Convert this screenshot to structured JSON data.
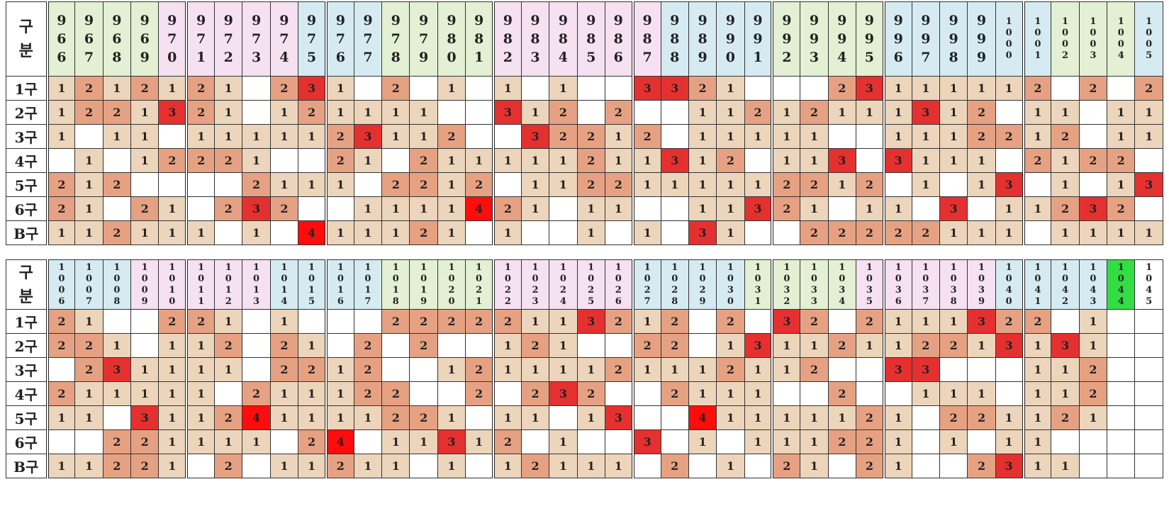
{
  "corner_label": "구\n분",
  "row_labels": [
    "1구",
    "2구",
    "3구",
    "4구",
    "5구",
    "6구",
    "B구"
  ],
  "colors": {
    "count_1": "#ecd5bb",
    "count_2": "#e6a183",
    "count_3": "#e53030",
    "count_4": "#ff0d0d",
    "header_green": "#e3f0d3",
    "header_pink": "#f5e1f1",
    "header_blue": "#d5ebf1",
    "header_highlight": "#33dd44"
  },
  "tables": [
    {
      "columns": [
        "966",
        "967",
        "968",
        "969",
        "970",
        "971",
        "972",
        "973",
        "974",
        "975",
        "976",
        "977",
        "978",
        "979",
        "980",
        "981",
        "982",
        "983",
        "984",
        "985",
        "986",
        "987",
        "988",
        "989",
        "990",
        "991",
        "992",
        "993",
        "994",
        "995",
        "996",
        "997",
        "998",
        "999",
        "1000",
        "1001",
        "1002",
        "1003",
        "1004",
        "1005"
      ],
      "header_colors": [
        "g",
        "g",
        "g",
        "g",
        "p",
        "p",
        "p",
        "p",
        "p",
        "b",
        "b",
        "b",
        "g",
        "g",
        "g",
        "g",
        "p",
        "p",
        "p",
        "p",
        "p",
        "p",
        "b",
        "b",
        "b",
        "b",
        "g",
        "g",
        "g",
        "g",
        "b",
        "b",
        "b",
        "b",
        "b",
        "b",
        "g",
        "g",
        "g",
        "b"
      ],
      "rows": [
        [
          1,
          2,
          1,
          2,
          1,
          2,
          1,
          0,
          2,
          3,
          1,
          0,
          2,
          0,
          1,
          0,
          1,
          0,
          1,
          0,
          0,
          3,
          3,
          2,
          1,
          0,
          0,
          0,
          2,
          3,
          1,
          1,
          1,
          1,
          1,
          2,
          0,
          2,
          0,
          2
        ],
        [
          1,
          2,
          2,
          1,
          3,
          2,
          1,
          0,
          1,
          2,
          1,
          1,
          1,
          1,
          0,
          0,
          3,
          1,
          2,
          0,
          2,
          0,
          0,
          1,
          1,
          2,
          1,
          2,
          1,
          1,
          1,
          3,
          1,
          2,
          0,
          1,
          1,
          0,
          1,
          1
        ],
        [
          1,
          0,
          1,
          1,
          0,
          1,
          1,
          1,
          1,
          1,
          2,
          3,
          1,
          1,
          2,
          0,
          0,
          3,
          2,
          2,
          1,
          2,
          0,
          1,
          1,
          1,
          1,
          1,
          0,
          0,
          1,
          1,
          1,
          2,
          2,
          1,
          2,
          0,
          1,
          1
        ],
        [
          0,
          1,
          0,
          1,
          2,
          2,
          2,
          1,
          0,
          0,
          2,
          1,
          0,
          2,
          1,
          1,
          1,
          1,
          1,
          2,
          1,
          1,
          3,
          1,
          2,
          0,
          1,
          1,
          3,
          0,
          3,
          1,
          1,
          1,
          0,
          2,
          1,
          2,
          2,
          0
        ],
        [
          2,
          1,
          2,
          0,
          0,
          0,
          0,
          2,
          1,
          1,
          1,
          0,
          2,
          2,
          1,
          2,
          0,
          1,
          1,
          2,
          2,
          1,
          1,
          1,
          1,
          1,
          2,
          2,
          1,
          2,
          0,
          1,
          0,
          1,
          3,
          0,
          1,
          0,
          1,
          3
        ],
        [
          2,
          1,
          0,
          2,
          1,
          0,
          2,
          3,
          2,
          0,
          0,
          1,
          1,
          1,
          1,
          4,
          2,
          1,
          0,
          1,
          1,
          0,
          0,
          1,
          1,
          3,
          2,
          1,
          0,
          1,
          1,
          0,
          3,
          0,
          1,
          1,
          2,
          3,
          2,
          0
        ],
        [
          1,
          1,
          2,
          1,
          1,
          1,
          0,
          1,
          0,
          4,
          1,
          1,
          1,
          2,
          1,
          0,
          1,
          0,
          0,
          1,
          0,
          1,
          0,
          3,
          1,
          0,
          0,
          2,
          2,
          2,
          2,
          2,
          1,
          1,
          1,
          0,
          1,
          1,
          1,
          1
        ]
      ]
    },
    {
      "columns": [
        "1006",
        "1007",
        "1008",
        "1009",
        "1010",
        "1011",
        "1012",
        "1013",
        "1014",
        "1015",
        "1016",
        "1017",
        "1018",
        "1019",
        "1020",
        "1021",
        "1022",
        "1023",
        "1024",
        "1025",
        "1026",
        "1027",
        "1028",
        "1029",
        "1030",
        "1031",
        "1032",
        "1033",
        "1034",
        "1035",
        "1036",
        "1037",
        "1038",
        "1039",
        "1040",
        "1041",
        "1042",
        "1043",
        "1044",
        "1045"
      ],
      "header_colors": [
        "b",
        "b",
        "b",
        "p",
        "p",
        "p",
        "p",
        "p",
        "b",
        "b",
        "b",
        "b",
        "g",
        "g",
        "g",
        "g",
        "p",
        "p",
        "p",
        "p",
        "p",
        "b",
        "b",
        "b",
        "b",
        "g",
        "g",
        "g",
        "g",
        "p",
        "p",
        "p",
        "p",
        "p",
        "b",
        "b",
        "b",
        "b",
        "hl",
        "w"
      ],
      "rows": [
        [
          2,
          1,
          0,
          0,
          2,
          2,
          1,
          0,
          1,
          0,
          0,
          0,
          2,
          2,
          2,
          2,
          2,
          1,
          1,
          3,
          2,
          1,
          2,
          0,
          2,
          0,
          3,
          2,
          0,
          2,
          1,
          1,
          1,
          3,
          2,
          2,
          0,
          1,
          0,
          0
        ],
        [
          2,
          2,
          1,
          0,
          1,
          1,
          2,
          0,
          2,
          1,
          0,
          2,
          0,
          2,
          0,
          0,
          1,
          2,
          1,
          0,
          0,
          2,
          2,
          0,
          1,
          3,
          1,
          1,
          2,
          1,
          1,
          2,
          2,
          1,
          3,
          1,
          3,
          1,
          0,
          0
        ],
        [
          0,
          2,
          3,
          1,
          1,
          1,
          1,
          0,
          2,
          2,
          1,
          2,
          0,
          0,
          1,
          2,
          1,
          1,
          1,
          1,
          2,
          1,
          1,
          1,
          2,
          1,
          1,
          2,
          0,
          0,
          3,
          3,
          0,
          0,
          0,
          1,
          1,
          2,
          0,
          0
        ],
        [
          2,
          1,
          1,
          1,
          1,
          1,
          0,
          2,
          1,
          1,
          1,
          2,
          2,
          0,
          0,
          2,
          0,
          2,
          3,
          2,
          0,
          0,
          2,
          1,
          1,
          1,
          0,
          0,
          2,
          0,
          0,
          1,
          1,
          1,
          0,
          1,
          1,
          2,
          0,
          0
        ],
        [
          1,
          1,
          0,
          3,
          1,
          1,
          2,
          4,
          1,
          1,
          1,
          1,
          2,
          2,
          1,
          0,
          1,
          1,
          0,
          1,
          3,
          0,
          0,
          4,
          1,
          1,
          1,
          1,
          1,
          2,
          1,
          0,
          2,
          2,
          1,
          1,
          2,
          1,
          0,
          0
        ],
        [
          0,
          0,
          2,
          2,
          1,
          1,
          1,
          1,
          0,
          2,
          4,
          0,
          1,
          1,
          3,
          1,
          2,
          0,
          1,
          0,
          0,
          3,
          0,
          1,
          0,
          1,
          1,
          1,
          2,
          2,
          1,
          0,
          1,
          0,
          1,
          1,
          0,
          0,
          0,
          0
        ],
        [
          1,
          1,
          2,
          2,
          1,
          0,
          2,
          0,
          1,
          1,
          2,
          1,
          1,
          0,
          1,
          0,
          1,
          2,
          1,
          1,
          1,
          0,
          2,
          0,
          1,
          0,
          2,
          1,
          0,
          2,
          1,
          0,
          0,
          2,
          3,
          1,
          1,
          0,
          0,
          0
        ]
      ]
    }
  ]
}
